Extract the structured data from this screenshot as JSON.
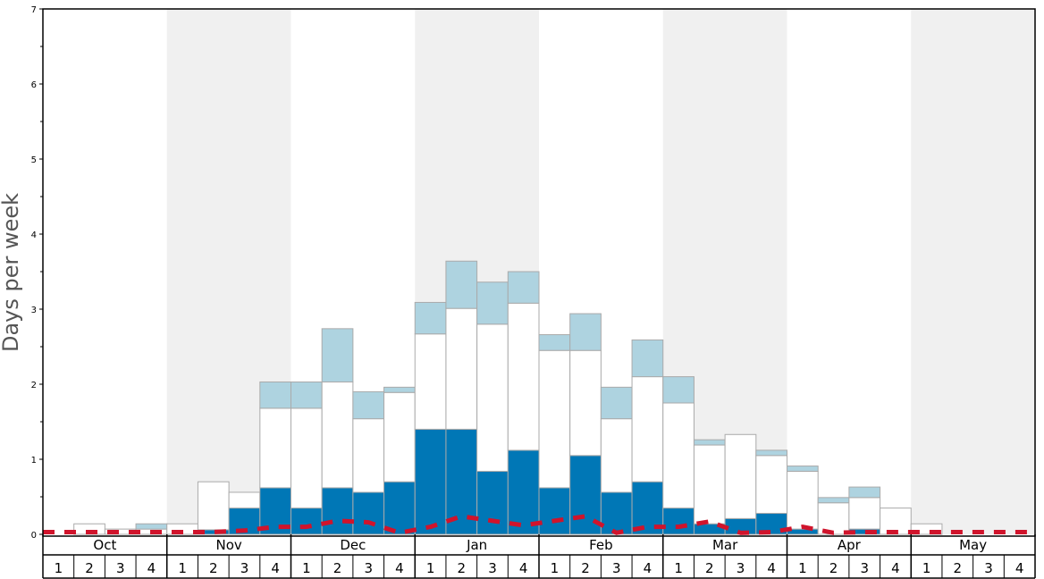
{
  "chart_data": {
    "type": "bar",
    "ylabel": "Days per week",
    "ylim": [
      0,
      7
    ],
    "y_ticks": [
      "0",
      "1",
      "2",
      "3",
      "4",
      "5",
      "6",
      "7"
    ],
    "months": [
      "Oct",
      "Nov",
      "Dec",
      "Jan",
      "Feb",
      "Mar",
      "Apr",
      "May"
    ],
    "weeks_per_month": [
      "1",
      "2",
      "3",
      "4"
    ],
    "colors": {
      "dark_segment": "#0077b6",
      "white_segment": "#ffffff",
      "light_segment": "#aed3e0",
      "dashed_line": "#d0142c",
      "shade_band": "#f0f0f0",
      "bar_outline": "#aaaaaa"
    },
    "series": [
      {
        "segment": "dark",
        "values": [
          0,
          0,
          0,
          0,
          0,
          0.06,
          0.35,
          0.62,
          0.35,
          0.62,
          0.56,
          0.7,
          1.4,
          1.4,
          0.84,
          1.12,
          0.62,
          1.05,
          0.56,
          0.7,
          0.35,
          0.14,
          0.21,
          0.28,
          0.07,
          0,
          0.07,
          0,
          0,
          0,
          0,
          0
        ]
      },
      {
        "segment": "white",
        "values": [
          0,
          0.14,
          0.07,
          0.07,
          0.14,
          0.64,
          0.21,
          1.06,
          1.33,
          1.41,
          0.98,
          1.19,
          1.27,
          1.61,
          1.96,
          1.96,
          1.83,
          1.4,
          0.98,
          1.4,
          1.4,
          1.05,
          1.12,
          0.77,
          0.77,
          0.42,
          0.42,
          0.35,
          0.14,
          0,
          0,
          0
        ]
      },
      {
        "segment": "light",
        "values": [
          0,
          0,
          0,
          0.07,
          0,
          0,
          0,
          0.35,
          0.35,
          0.71,
          0.36,
          0.07,
          0.42,
          0.63,
          0.56,
          0.42,
          0.21,
          0.49,
          0.42,
          0.49,
          0.35,
          0.07,
          0,
          0.07,
          0.07,
          0.07,
          0.14,
          0,
          0,
          0,
          0,
          0
        ]
      },
      {
        "segment": "dashed-line",
        "values": [
          0.03,
          0.03,
          0.03,
          0.03,
          0.03,
          0.03,
          0.05,
          0.1,
          0.1,
          0.18,
          0.16,
          0.02,
          0.1,
          0.24,
          0.18,
          0.12,
          0.18,
          0.24,
          0.02,
          0.1,
          0.1,
          0.17,
          0.02,
          0.03,
          0.1,
          0.02,
          0.03,
          0.03,
          0.03,
          0.03,
          0.03,
          0.03
        ]
      }
    ]
  }
}
